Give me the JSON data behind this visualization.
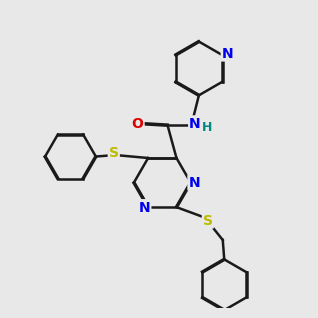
{
  "bg_color": "#e8e8e8",
  "bond_color": "#1a1a1a",
  "bond_width": 1.8,
  "atom_colors": {
    "N": "#0000ee",
    "O": "#dd0000",
    "S": "#bbbb00",
    "C": "#1a1a1a",
    "H": "#008888"
  }
}
